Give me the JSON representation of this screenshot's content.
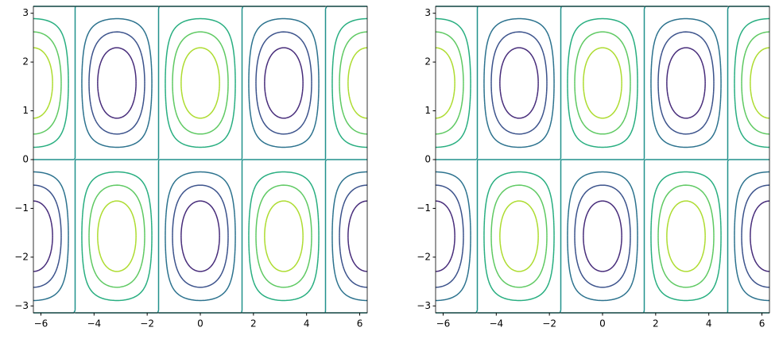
{
  "chart_data": [
    {
      "type": "contour",
      "function": "cos(x)*sin(y)",
      "levels": [
        -0.75,
        -0.5,
        -0.25,
        0,
        0.25,
        0.5,
        0.75
      ],
      "colors": [
        "#472c7a",
        "#3b528b",
        "#2c728e",
        "#21918c",
        "#28ae80",
        "#5ec962",
        "#addc30"
      ],
      "xlim": [
        -6.283,
        6.283
      ],
      "ylim": [
        -3.1416,
        3.1416
      ],
      "xticks": [
        {
          "value": -6,
          "label": "−6"
        },
        {
          "value": -4,
          "label": "−4"
        },
        {
          "value": -2,
          "label": "−2"
        },
        0,
        2,
        4,
        6
      ],
      "yticks": [
        {
          "value": -3,
          "label": "−3"
        },
        {
          "value": -2,
          "label": "−2"
        },
        {
          "value": -1,
          "label": "−1"
        },
        0,
        1,
        2,
        3
      ]
    },
    {
      "type": "contour",
      "function": "cos(x)*sin(y)",
      "levels": [
        -0.75,
        -0.5,
        -0.25,
        0,
        0.25,
        0.5,
        0.75
      ],
      "colors": [
        "#472c7a",
        "#3b528b",
        "#2c728e",
        "#21918c",
        "#28ae80",
        "#5ec962",
        "#addc30"
      ],
      "xlim": [
        -6.283,
        6.283
      ],
      "ylim": [
        -3.1416,
        3.1416
      ],
      "xticks": [
        {
          "value": -6,
          "label": "−6"
        },
        {
          "value": -4,
          "label": "−4"
        },
        {
          "value": -2,
          "label": "−2"
        },
        0,
        2,
        4,
        6
      ],
      "yticks": [
        {
          "value": -3,
          "label": "−3"
        },
        {
          "value": -2,
          "label": "−2"
        },
        {
          "value": -1,
          "label": "−1"
        },
        0,
        1,
        2,
        3
      ]
    }
  ]
}
